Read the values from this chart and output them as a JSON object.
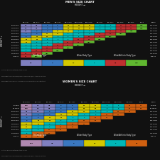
{
  "bg_color": "#111111",
  "title1": "MEN'S SIZE CHART",
  "title2": "WOMEN'S SIZE CHART",
  "table1": {
    "col_headers": [
      "5'3\"-5'5\"",
      "5'5\"-5'7\"",
      "5'7\"-5'8\"",
      "5'8\"-5'9\"",
      "5'9\"-5'10\"",
      "5'10\"-5'11\"",
      "5'11\"-6'0\"",
      "6'0\"-6'1\"",
      "6'1\"-6'2\"",
      "6'2\"-6'3\"",
      "6'3\"-6'4\"",
      "6'4\"+",
      "RIGHT"
    ],
    "row_headers": [
      "105-115lb",
      "115-125lb",
      "125-135lb",
      "135-145lb",
      "145-155lb",
      "155-165lb",
      "165-175lb",
      "175-185lb",
      "185-195lb",
      "195-210lb",
      "210-225lb",
      "225+lb"
    ],
    "sizes": [
      [
        "XS",
        "XS",
        "S",
        "S",
        "M",
        "M",
        "M",
        "L",
        "L",
        "XL",
        "XL",
        "XXL"
      ],
      [
        "XS",
        "XS",
        "S",
        "S",
        "M",
        "M",
        "M",
        "L",
        "L",
        "XL",
        "XL",
        "XXL"
      ],
      [
        "XS",
        "S",
        "S",
        "M",
        "M",
        "L",
        "L",
        "L",
        "XL",
        "XL",
        "XXL",
        ""
      ],
      [
        "S",
        "S",
        "M",
        "M",
        "L",
        "L",
        "L",
        "XL",
        "XL",
        "XXL",
        "",
        ""
      ],
      [
        "S",
        "M",
        "M",
        "L",
        "L",
        "L",
        "XL",
        "XL",
        "XXL",
        "",
        "",
        ""
      ],
      [
        "M",
        "M",
        "L",
        "L",
        "L",
        "XL",
        "XL",
        "XXL",
        "",
        "",
        "",
        ""
      ],
      [
        "M",
        "L",
        "L",
        "L",
        "XL",
        "XL",
        "XXL",
        "",
        "",
        "",
        "",
        ""
      ],
      [
        "L",
        "L",
        "L",
        "XL",
        "XL",
        "XXL",
        "",
        "",
        "",
        "",
        "",
        ""
      ],
      [
        "L",
        "L",
        "XL",
        "XL",
        "XXL",
        "",
        "",
        "",
        "",
        "",
        "",
        ""
      ],
      [
        "L",
        "XL",
        "XL",
        "XXL",
        "",
        "",
        "",
        "",
        "",
        "",
        "",
        ""
      ],
      [
        "XL",
        "XL",
        "XXL",
        "",
        "",
        "",
        "",
        "",
        "",
        "",
        "",
        ""
      ],
      [
        "XL",
        "XXL",
        "",
        "",
        "",
        "",
        "",
        "",
        "",
        "",
        "",
        ""
      ]
    ],
    "right_col": [
      "105-115lb",
      "115-125lb",
      "125-135lb",
      "135-145lb",
      "145-155lb",
      "155-165lb",
      "165-175lb",
      "175-185lb",
      "185-195lb",
      "195-210lb",
      "210-225lb",
      "225+lb"
    ],
    "size_colors": {
      "XS": "#8080c0",
      "S": "#3a78c0",
      "M": "#d4c800",
      "L": "#00b8b8",
      "XL": "#c03030",
      "XXL": "#60b830",
      "": "#111111"
    }
  },
  "table2": {
    "col_headers": [
      "4'11\"-5'1\"",
      "5'1\"-5'3\"",
      "5'3\"-5'5\"",
      "5'5\"-5'7\"",
      "5'7\"-5'8\"",
      "5'8\"-5'9\"",
      "5'9\"-5'10\"",
      "5'10\"-5'11\"",
      "5'11\"-6'0\"",
      "6'0\"-6'1\"",
      "6'1\"+",
      "RIGHT"
    ],
    "row_headers": [
      "85-95lb",
      "95-105lb",
      "105-115lb",
      "115-125lb",
      "125-135lb",
      "135-145lb",
      "145-155lb",
      "155-165lb",
      "165-175lb",
      "175-185lb",
      "185+lb"
    ],
    "sizes": [
      [
        "XXS",
        "XS",
        "XS",
        "S",
        "S",
        "M",
        "M",
        "L",
        "L",
        "XL",
        "XL"
      ],
      [
        "XXS",
        "XS",
        "XS",
        "S",
        "S",
        "M",
        "M",
        "L",
        "L",
        "XL",
        "XL"
      ],
      [
        "XS",
        "XS",
        "S",
        "S",
        "M",
        "M",
        "L",
        "L",
        "XL",
        "XL",
        ""
      ],
      [
        "XS",
        "S",
        "S",
        "M",
        "M",
        "L",
        "L",
        "XL",
        "XL",
        "",
        ""
      ],
      [
        "S",
        "S",
        "M",
        "M",
        "L",
        "L",
        "XL",
        "XL",
        "",
        "",
        ""
      ],
      [
        "S",
        "M",
        "M",
        "L",
        "L",
        "XL",
        "XL",
        "",
        "",
        "",
        ""
      ],
      [
        "M",
        "M",
        "L",
        "L",
        "XL",
        "XL",
        "",
        "",
        "",
        "",
        ""
      ],
      [
        "M",
        "L",
        "L",
        "XL",
        "XL",
        "",
        "",
        "",
        "",
        "",
        ""
      ],
      [
        "L",
        "L",
        "XL",
        "XL",
        "",
        "",
        "",
        "",
        "",
        "",
        ""
      ],
      [
        "L",
        "XL",
        "XL",
        "",
        "",
        "",
        "",
        "",
        "",
        "",
        ""
      ],
      [
        "XL",
        "XL",
        "",
        "",
        "",
        "",
        "",
        "",
        "",
        "",
        ""
      ]
    ],
    "right_col": [
      "85-95lb",
      "95-105lb",
      "105-115lb",
      "115-125lb",
      "125-135lb",
      "135-145lb",
      "145-155lb",
      "155-165lb",
      "165-175lb",
      "175-185lb",
      "185+lb"
    ],
    "size_colors": {
      "XXS": "#b088b0",
      "XS": "#8080c0",
      "S": "#3a78c0",
      "M": "#d4c800",
      "L": "#00b8b8",
      "XL": "#d06010",
      "": "#111111"
    }
  },
  "legend1_labels": [
    "XS",
    "S",
    "M",
    "L",
    "XL",
    "XXL"
  ],
  "legend1_colors": [
    "#8080c0",
    "#3a78c0",
    "#d4c800",
    "#00b8b8",
    "#c03030",
    "#60b830"
  ],
  "legend2_labels": [
    "XXS",
    "XS",
    "S",
    "M",
    "L",
    "XL"
  ],
  "legend2_colors": [
    "#b088b0",
    "#8080c0",
    "#3a78c0",
    "#d4c800",
    "#00b8b8",
    "#d06010"
  ],
  "text_color": "#ffffff",
  "footnote1": "On the border between two sizes?",
  "footnote2": "We suggest you size DOWN/UP for a smaller and/or LARGER body type.",
  "footnote3": "We suggest you size UP if you wear neoprene resistance or a tighter fit.",
  "legend_group1": "Thin Body Type",
  "legend_group2": "Wider Body Type",
  "legend_group3": "Wide/Athletic Body Type"
}
